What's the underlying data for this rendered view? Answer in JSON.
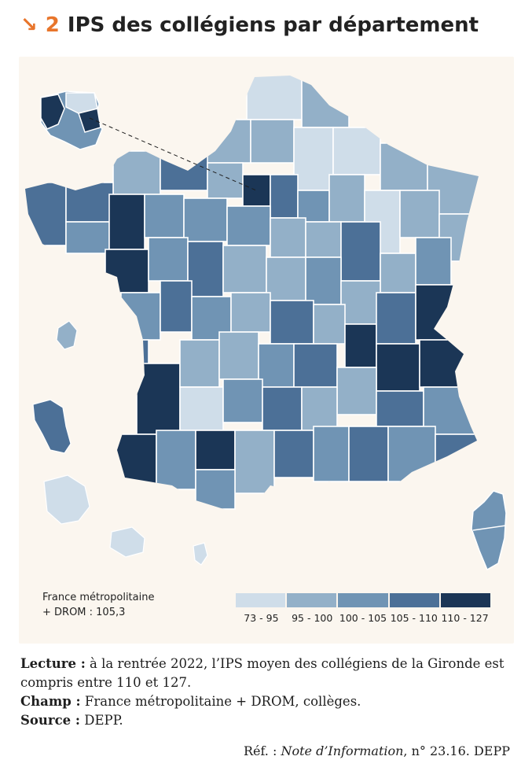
{
  "header": {
    "arrow": "↘",
    "number": "2",
    "title": "IPS des collégiens par département"
  },
  "map": {
    "note_line1": "France métropolitaine",
    "note_line2": "+ DROM : 105,3",
    "colors": {
      "background": "#fbf6ef",
      "border": "#ffffff",
      "class_1": "#cfdde9",
      "class_2": "#93b0c8",
      "class_3": "#7094b4",
      "class_4": "#4c7097",
      "class_5": "#1b3656"
    },
    "legend": [
      {
        "label": "73 - 95",
        "color": "#cfdde9"
      },
      {
        "label": "95 - 100",
        "color": "#93b0c8"
      },
      {
        "label": "100 - 105",
        "color": "#7094b4"
      },
      {
        "label": "105 - 110",
        "color": "#4c7097"
      },
      {
        "label": "110 - 127",
        "color": "#1b3656"
      }
    ]
  },
  "caption": {
    "lecture_label": "Lecture :",
    "lecture_text": " à la rentrée 2022, l’IPS moyen des collégiens de la Gironde est compris entre 110 et 127.",
    "champ_label": "Champ :",
    "champ_text": " France métropolitaine + DROM, collèges.",
    "source_label": "Source :",
    "source_text": " DEPP.",
    "ref_prefix": "Réf. : ",
    "ref_italic": "Note d’Information",
    "ref_suffix": ", n° 23.16. DEPP"
  }
}
